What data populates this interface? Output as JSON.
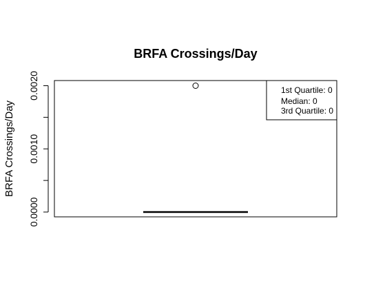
{
  "chart_data": {
    "type": "boxplot",
    "title": "BRFA Crossings/Day",
    "xlabel": "",
    "ylabel": "BRFA Crossings/Day",
    "ylim": [
      0,
      0.0021
    ],
    "y_ticks": [
      0.0,
      0.0005,
      0.001,
      0.0015,
      0.002
    ],
    "y_tick_labels": [
      "0.0000",
      "",
      "0.0010",
      "",
      "0.0020"
    ],
    "grid": false,
    "legend_position": "top-right",
    "legend": [
      "1st Quartile: 0",
      "Median: 0",
      "3rd Quartile: 0"
    ],
    "box": {
      "min": 0,
      "q1": 0,
      "median": 0,
      "q3": 0,
      "max": 0,
      "outliers": [
        0.002
      ]
    }
  }
}
